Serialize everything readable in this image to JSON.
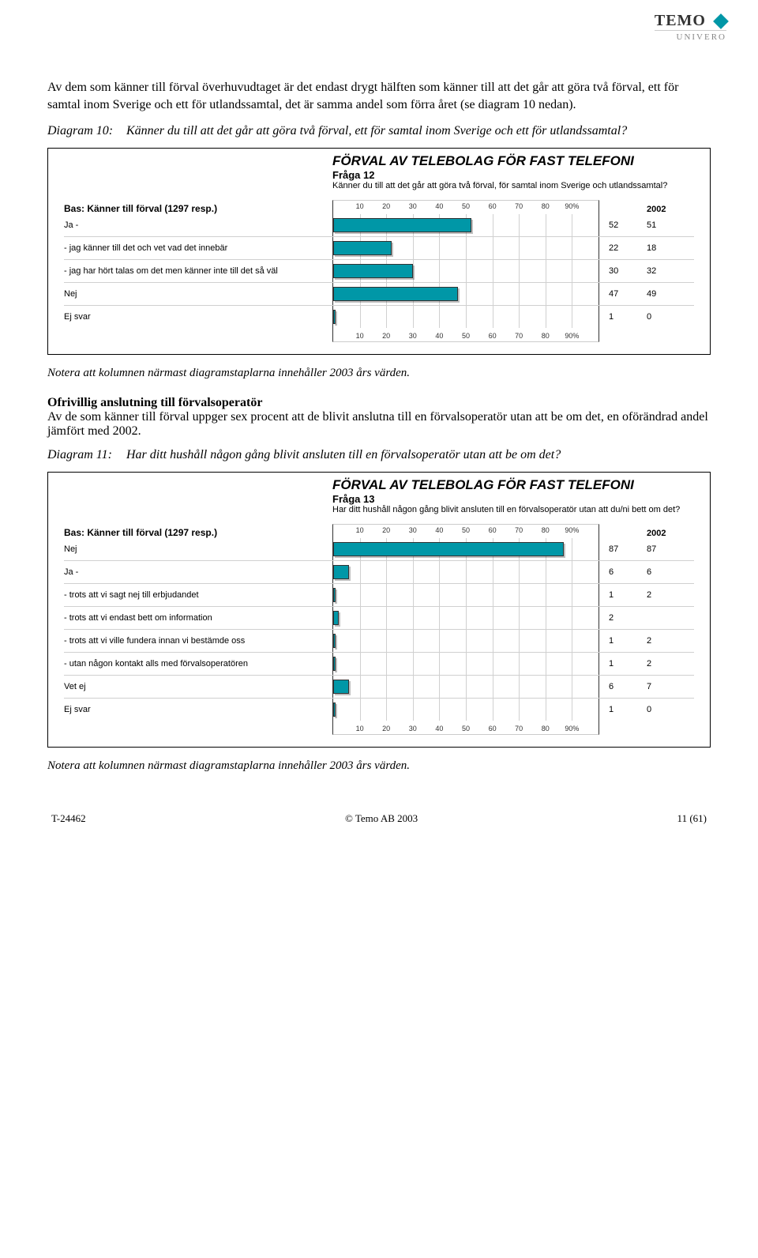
{
  "logo": {
    "brand": "TEMO",
    "sub": "UNIVERO"
  },
  "intro": "Av dem som känner till förval överhuvudtaget är det endast drygt hälften som känner till att det går att göra två förval, ett för samtal inom Sverige och ett för utlandssamtal, det är samma andel som förra året (se diagram 10 nedan).",
  "d10_label": "Diagram 10:",
  "d10_text": "Känner du till att det går att göra två förval, ett för samtal inom Sverige och ett för utlandssamtal?",
  "note1": "Notera att kolumnen närmast diagramstaplarna innehåller 2003 års värden.",
  "section_head": "Ofrivillig anslutning till förvalsoperatör",
  "section_body": "Av de som känner till förval uppger sex procent att de blivit anslutna till en förvalsoperatör utan att be om det, en oförändrad andel jämfört med 2002.",
  "d11_label": "Diagram 11:",
  "d11_text": "Har ditt hushåll någon gång blivit ansluten till en förvalsoperatör utan att be om det?",
  "note2": "Notera att kolumnen närmast diagramstaplarna innehåller 2003 års värden.",
  "footer": {
    "left": "T-24462",
    "center": "© Temo AB 2003",
    "right": "11 (61)"
  },
  "chart10": {
    "type": "bar",
    "title": "FÖRVAL AV TELEBOLAG FÖR FAST TELEFONI",
    "subtitle": "Fråga 12",
    "question": "Känner du till att det går att göra två förval, för samtal inom Sverige och utlandssamtal?",
    "base": "Bas: Känner till förval (1297 resp.)",
    "year_col": "2002",
    "bar_color": "#0097a7",
    "background_color": "#ffffff",
    "grid_color": "#d0d0d0",
    "xlim": [
      0,
      100
    ],
    "ticks": [
      10,
      20,
      30,
      40,
      50,
      60,
      70,
      80,
      90
    ],
    "tick_labels": [
      "10",
      "20",
      "30",
      "40",
      "50",
      "60",
      "70",
      "80",
      "90%"
    ],
    "rows": [
      {
        "label": "Ja -",
        "value": 52,
        "v2003": "52",
        "v2002": "51"
      },
      {
        "label": "-   jag känner till det och vet vad det innebär",
        "value": 22,
        "v2003": "22",
        "v2002": "18"
      },
      {
        "label": "-   jag har hört talas om det men känner inte till det så väl",
        "value": 30,
        "v2003": "30",
        "v2002": "32"
      },
      {
        "label": "Nej",
        "value": 47,
        "v2003": "47",
        "v2002": "49"
      },
      {
        "label": "Ej svar",
        "value": 1,
        "v2003": "1",
        "v2002": "0"
      }
    ]
  },
  "chart11": {
    "type": "bar",
    "title": "FÖRVAL AV TELEBOLAG FÖR FAST TELEFONI",
    "subtitle": "Fråga 13",
    "question": "Har ditt hushåll någon gång blivit ansluten till en förvalsoperatör utan att du/ni bett om det?",
    "base": "Bas: Känner till förval (1297 resp.)",
    "year_col": "2002",
    "bar_color": "#0097a7",
    "background_color": "#ffffff",
    "grid_color": "#d0d0d0",
    "xlim": [
      0,
      100
    ],
    "ticks": [
      10,
      20,
      30,
      40,
      50,
      60,
      70,
      80,
      90
    ],
    "tick_labels": [
      "10",
      "20",
      "30",
      "40",
      "50",
      "60",
      "70",
      "80",
      "90%"
    ],
    "rows": [
      {
        "label": "Nej",
        "value": 87,
        "v2003": "87",
        "v2002": "87"
      },
      {
        "label": "Ja -",
        "value": 6,
        "v2003": "6",
        "v2002": "6"
      },
      {
        "label": "-   trots att vi sagt nej till erbjudandet",
        "value": 1,
        "v2003": "1",
        "v2002": "2"
      },
      {
        "label": "-   trots att vi endast bett om information",
        "value": 2,
        "v2003": "2",
        "v2002": ""
      },
      {
        "label": "-   trots att vi ville fundera innan vi bestämde oss",
        "value": 1,
        "v2003": "1",
        "v2002": "2"
      },
      {
        "label": "-   utan någon kontakt alls med förvalsoperatören",
        "value": 1,
        "v2003": "1",
        "v2002": "2"
      },
      {
        "label": "Vet ej",
        "value": 6,
        "v2003": "6",
        "v2002": "7"
      },
      {
        "label": "Ej svar",
        "value": 1,
        "v2003": "1",
        "v2002": "0"
      }
    ]
  }
}
